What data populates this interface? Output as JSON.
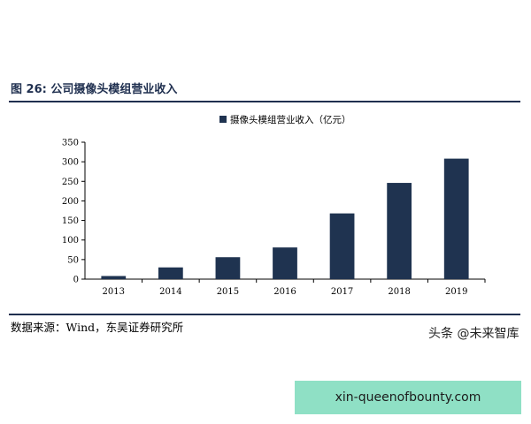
{
  "figure": {
    "title": "图 26: 公司摄像头模组营业收入",
    "source": "数据来源：Wind，东吴证券研究所"
  },
  "watermark": "头条 @未来智库",
  "banner": "xin-queenofbounty.com",
  "colors": {
    "bar": "#1f3350",
    "rule": "#1f2f4f",
    "banner": "#8fe0c5"
  },
  "chart_data": {
    "type": "bar",
    "categories": [
      "2013",
      "2014",
      "2015",
      "2016",
      "2017",
      "2018",
      "2019"
    ],
    "series": [
      {
        "name": "摄像头模组营业收入（亿元）",
        "values": [
          8,
          30,
          56,
          81,
          168,
          246,
          308
        ]
      }
    ],
    "title": "",
    "xlabel": "",
    "ylabel": "",
    "ylim": [
      0,
      350
    ],
    "yticks": [
      0,
      50,
      100,
      150,
      200,
      250,
      300,
      350
    ],
    "legend": "top-center",
    "grid": false
  }
}
